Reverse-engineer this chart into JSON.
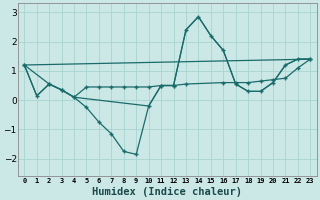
{
  "background_color": "#cce8e6",
  "grid_color": "#a8d4d0",
  "line_color": "#1a6b6b",
  "xlabel": "Humidex (Indice chaleur)",
  "xlabel_fontsize": 7.5,
  "xlim": [
    -0.5,
    23.5
  ],
  "ylim": [
    -2.6,
    3.3
  ],
  "yticks": [
    -2,
    -1,
    0,
    1,
    2,
    3
  ],
  "xtick_labels": [
    "0",
    "1",
    "2",
    "3",
    "4",
    "5",
    "6",
    "7",
    "8",
    "9",
    "10",
    "11",
    "12",
    "13",
    "14",
    "15",
    "16",
    "17",
    "18",
    "19",
    "20",
    "21",
    "22",
    "23"
  ],
  "line1": {
    "x": [
      0,
      1,
      2,
      3,
      4,
      5,
      6,
      7,
      8,
      9,
      10,
      11,
      12,
      13,
      14,
      15,
      16,
      17,
      18,
      19,
      20,
      21,
      22,
      23
    ],
    "y": [
      1.2,
      0.15,
      0.55,
      0.35,
      0.1,
      -0.25,
      -0.75,
      -1.15,
      -1.75,
      -1.85,
      -0.2,
      0.5,
      0.5,
      2.4,
      2.85,
      2.2,
      1.7,
      0.55,
      0.3,
      0.3,
      0.6,
      1.2,
      1.4,
      1.4
    ]
  },
  "line2": {
    "x": [
      0,
      23
    ],
    "y": [
      1.2,
      1.4
    ]
  },
  "line3": {
    "x": [
      0,
      1,
      2,
      3,
      4,
      10,
      11,
      12,
      13,
      14,
      15,
      16,
      17,
      18,
      19,
      20,
      21,
      22,
      23
    ],
    "y": [
      1.2,
      0.15,
      0.55,
      0.35,
      0.1,
      -0.2,
      0.5,
      0.5,
      2.4,
      2.85,
      2.2,
      1.7,
      0.55,
      0.3,
      0.3,
      0.6,
      1.2,
      1.4,
      1.4
    ]
  },
  "line4": {
    "x": [
      0,
      2,
      3,
      4,
      5,
      6,
      7,
      8,
      9,
      10,
      11,
      12,
      13,
      16,
      17,
      18,
      19,
      20,
      21,
      22,
      23
    ],
    "y": [
      1.2,
      0.55,
      0.35,
      0.1,
      0.45,
      0.45,
      0.45,
      0.45,
      0.45,
      0.45,
      0.5,
      0.5,
      0.55,
      0.6,
      0.6,
      0.6,
      0.65,
      0.7,
      0.75,
      1.1,
      1.4
    ]
  }
}
